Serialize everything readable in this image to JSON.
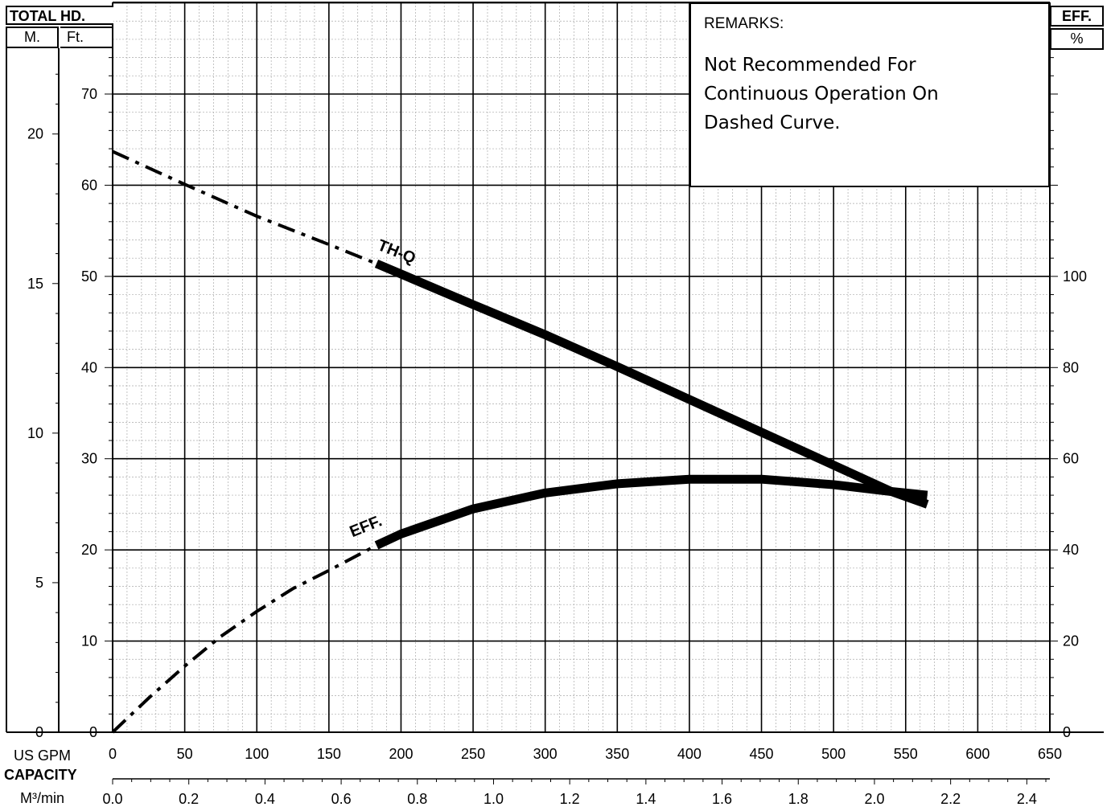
{
  "headers": {
    "left_title": "TOTAL HD.",
    "left_m": "M.",
    "left_ft": "Ft.",
    "right_title": "EFF.",
    "right_unit": "%"
  },
  "remarks": {
    "title": "REMARKS:",
    "text": "Not Recommended For\nContinuous Operation On\nDashed Curve."
  },
  "bottom": {
    "us_gpm_label": "US GPM",
    "capacity_label": "CAPACITY",
    "m3_label": "M³/min"
  },
  "chart_data": {
    "type": "line",
    "x_axis": {
      "label": "US GPM",
      "range": [
        0,
        650
      ],
      "ticks": [
        0,
        50,
        100,
        150,
        200,
        250,
        300,
        350,
        400,
        450,
        500,
        550,
        600,
        650
      ]
    },
    "x2_axis": {
      "label": "M³/min",
      "ticks": [
        "0.0",
        "0.2",
        "0.4",
        "0.6",
        "0.8",
        "1.0",
        "1.2",
        "1.4",
        "1.6",
        "1.8",
        "2.0",
        "2.2",
        "2.4"
      ]
    },
    "y_axis_ft": {
      "label": "Ft.",
      "range": [
        0,
        70
      ],
      "ticks": [
        0,
        10,
        20,
        30,
        40,
        50,
        60,
        70
      ]
    },
    "y_axis_m": {
      "label": "M.",
      "ticks": [
        0,
        5,
        10,
        15,
        20
      ]
    },
    "y_axis_eff": {
      "label": "%",
      "ticks": [
        0,
        20,
        40,
        60,
        80,
        100
      ]
    },
    "grid": true,
    "series": [
      {
        "name": "TH-Q",
        "axis": "ft",
        "dashed": {
          "x": [
            0,
            50,
            100,
            150,
            183
          ],
          "y": [
            63.7,
            60.1,
            56.6,
            53.5,
            51.4
          ]
        },
        "solid": {
          "x": [
            183,
            250,
            300,
            350,
            400,
            450,
            500,
            540,
            565
          ],
          "y": [
            51.4,
            46.9,
            43.6,
            40.1,
            36.5,
            32.9,
            29.3,
            26.4,
            25.0
          ]
        }
      },
      {
        "name": "EFF.",
        "axis": "eff",
        "dashed": {
          "x": [
            0,
            25,
            50,
            75,
            100,
            125,
            150,
            183
          ],
          "y": [
            0,
            7.5,
            14.5,
            21,
            26.5,
            31.5,
            35.5,
            41
          ]
        },
        "solid": {
          "x": [
            183,
            200,
            250,
            300,
            350,
            400,
            450,
            500,
            540,
            565
          ],
          "y": [
            41,
            43.5,
            49,
            52.5,
            54.5,
            55.5,
            55.5,
            54.3,
            52.8,
            52
          ]
        }
      }
    ]
  }
}
